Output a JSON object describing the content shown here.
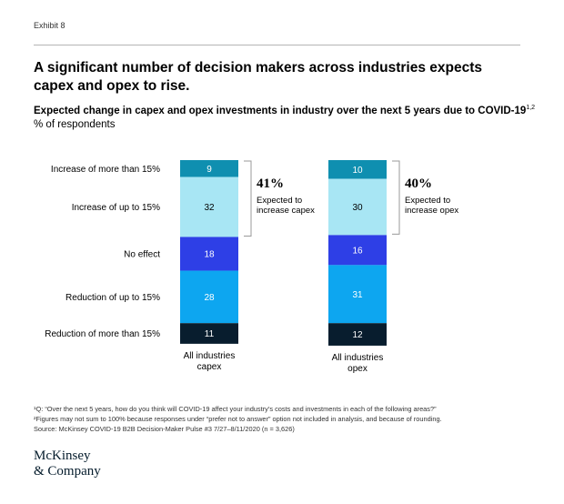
{
  "header": {
    "exhibit": "Exhibit 8"
  },
  "title": "A significant number of decision makers across industries expects capex and opex to rise.",
  "subtitle": {
    "text": "Expected change in capex and opex investments in industry over the next 5 years due to COVID-19",
    "sup": "1,2"
  },
  "unit": "% of respondents",
  "chart_data": {
    "type": "bar",
    "stacked": true,
    "categories": [
      "All industries capex",
      "All industries opex"
    ],
    "category_lines": [
      [
        "All industries",
        "capex"
      ],
      [
        "All industries",
        "opex"
      ]
    ],
    "series": [
      {
        "name": "Increase of more than 15%",
        "color": "#0f8fb0",
        "values": [
          9,
          10
        ]
      },
      {
        "name": "Increase of up to 15%",
        "color": "#a8e6f4",
        "values": [
          32,
          30
        ]
      },
      {
        "name": "No effect",
        "color": "#2e3fe6",
        "values": [
          18,
          16
        ]
      },
      {
        "name": "Reduction of up to 15%",
        "color": "#0da6f0",
        "values": [
          28,
          31
        ]
      },
      {
        "name": "Reduction of more than 15%",
        "color": "#081d2e",
        "values": [
          11,
          12
        ]
      }
    ],
    "annotations": [
      {
        "value": "41%",
        "line1": "Expected to",
        "line2": "increase capex"
      },
      {
        "value": "40%",
        "line1": "Expected to",
        "line2": "increase opex"
      }
    ]
  },
  "notes": [
    "¹Q: “Over the next 5 years, how do you think will COVID-19 affect your industry’s costs and investments in each of the following areas?”",
    "²Figures may not sum to 100% because responses under “prefer not to answer” option not included in analysis, and because of rounding.",
    "Source: McKinsey COVID-19 B2B Decision-Maker Pulse #3 7/27–8/11/2020 (n = 3,626)"
  ],
  "logo": {
    "line1": "McKinsey",
    "line2": "& Company"
  }
}
